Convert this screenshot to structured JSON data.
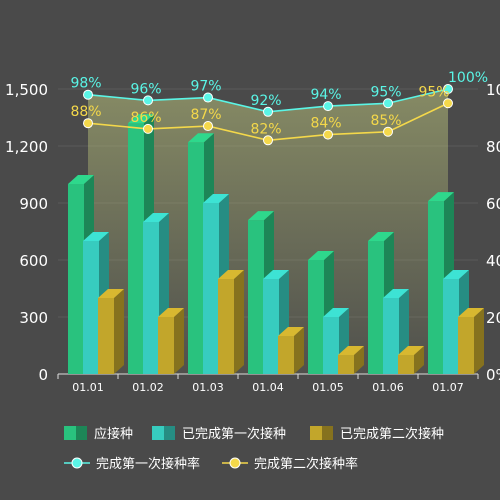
{
  "chart_data": {
    "type": "bar",
    "categories": [
      "01.01",
      "01.02",
      "01.03",
      "01.04",
      "01.05",
      "01.06",
      "01.07"
    ],
    "y_left": {
      "min": 0,
      "max": 1500,
      "ticks": [
        0,
        300,
        600,
        900,
        1200,
        1500
      ],
      "tick_labels": [
        "0",
        "300",
        "600",
        "900",
        "1,200",
        "1,500"
      ]
    },
    "y_right": {
      "min": 0,
      "max": 100,
      "ticks": [
        0,
        20,
        40,
        60,
        80,
        100
      ],
      "tick_labels": [
        "0%",
        "20%",
        "40%",
        "60%",
        "80%",
        "100%"
      ]
    },
    "series": [
      {
        "name": "应接种",
        "kind": "bar",
        "color": "#2ed88c",
        "values": [
          1000,
          1320,
          1220,
          810,
          600,
          700,
          910
        ]
      },
      {
        "name": "已完成第一次接种",
        "kind": "bar",
        "color": "#3de3d4",
        "values": [
          700,
          800,
          900,
          500,
          300,
          400,
          500
        ]
      },
      {
        "name": "已完成第二次接种",
        "kind": "bar",
        "color": "#d8b830",
        "values": [
          400,
          300,
          500,
          200,
          100,
          100,
          300
        ]
      },
      {
        "name": "完成第一次接种率",
        "kind": "line",
        "color": "#5af5e6",
        "values": [
          98,
          96,
          97,
          92,
          94,
          95,
          100
        ],
        "labels": [
          "98%",
          "96%",
          "97%",
          "92%",
          "94%",
          "95%",
          "100%"
        ]
      },
      {
        "name": "完成第二次接种率",
        "kind": "line",
        "color": "#f4d84a",
        "values": [
          88,
          86,
          87,
          82,
          84,
          85,
          95
        ],
        "labels": [
          "88%",
          "86%",
          "87%",
          "82%",
          "84%",
          "85%",
          "95%"
        ]
      }
    ],
    "title": "",
    "xlabel": "",
    "ylabel": "",
    "legend": "bottom"
  }
}
